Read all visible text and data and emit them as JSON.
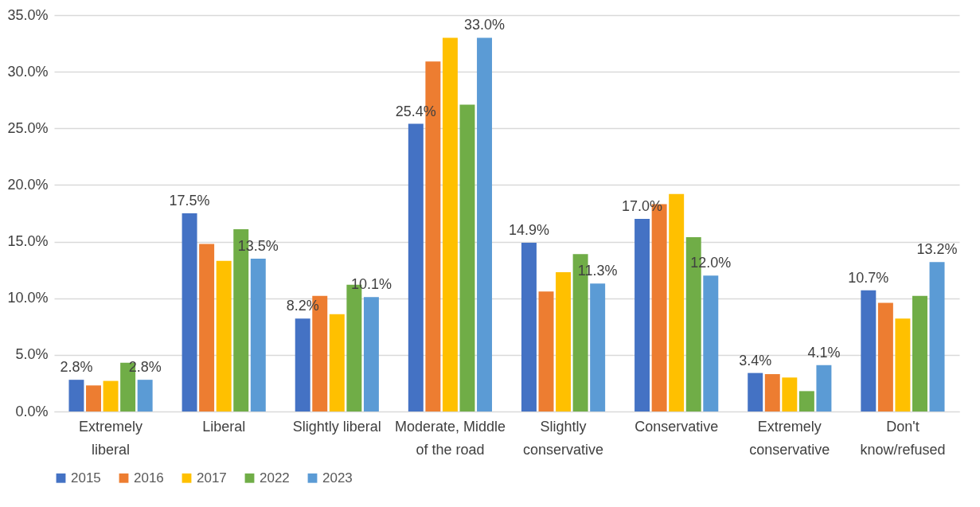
{
  "chart_data": {
    "type": "bar",
    "categories": [
      "Extremely liberal",
      "Liberal",
      "Slightly liberal",
      "Moderate, Middle of the road",
      "Slightly conservative",
      "Conservative",
      "Extremely conservative",
      "Don't know/refused"
    ],
    "series": [
      {
        "name": "2015",
        "color": "#4472c4",
        "values": [
          2.8,
          17.5,
          8.2,
          25.4,
          14.9,
          17.0,
          3.4,
          10.7
        ],
        "value_labels": [
          "2.8%",
          "17.5%",
          "8.2%",
          "25.4%",
          "14.9%",
          "17.0%",
          "3.4%",
          "10.7%"
        ]
      },
      {
        "name": "2016",
        "color": "#ed7d31",
        "values": [
          2.3,
          14.8,
          10.2,
          30.9,
          10.6,
          18.3,
          3.3,
          9.6
        ]
      },
      {
        "name": "2017",
        "color": "#ffc000",
        "values": [
          2.7,
          13.3,
          8.6,
          33.0,
          12.3,
          19.2,
          3.0,
          8.2
        ]
      },
      {
        "name": "2022",
        "color": "#70ad47",
        "values": [
          4.3,
          16.1,
          11.2,
          27.1,
          13.9,
          15.4,
          1.8,
          10.2
        ]
      },
      {
        "name": "2023",
        "color": "#5b9bd5",
        "values": [
          2.8,
          13.5,
          10.1,
          33.0,
          11.3,
          12.0,
          4.1,
          13.2
        ],
        "value_labels": [
          "2.8%",
          "13.5%",
          "10.1%",
          "33.0%",
          "11.3%",
          "12.0%",
          "4.1%",
          "13.2%"
        ]
      }
    ],
    "ylim": [
      0,
      35
    ],
    "yticks": [
      {
        "value": 0,
        "label": "0.0%"
      },
      {
        "value": 5,
        "label": "5.0%"
      },
      {
        "value": 10,
        "label": "10.0%"
      },
      {
        "value": 15,
        "label": "15.0%"
      },
      {
        "value": 20,
        "label": "20.0%"
      },
      {
        "value": 25,
        "label": "25.0%"
      },
      {
        "value": 30,
        "label": "30.0%"
      },
      {
        "value": 35,
        "label": "35.0%"
      }
    ],
    "grid": "y",
    "legend": "bottom"
  }
}
